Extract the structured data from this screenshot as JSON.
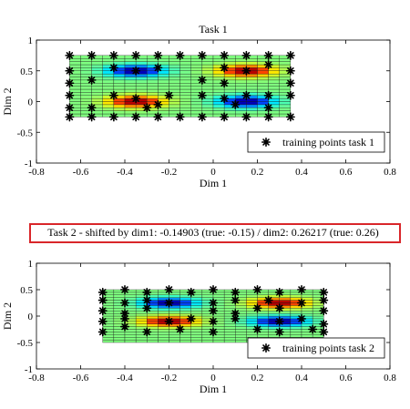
{
  "chart_data": [
    {
      "type": "heatmap",
      "title": "Task 1",
      "xlabel": "Dim 1",
      "ylabel": "Dim 2",
      "xlim": [
        -0.8,
        0.8
      ],
      "ylim": [
        -1,
        1
      ],
      "xticks": [
        "-0.8",
        "-0.6",
        "-0.4",
        "-0.2",
        "0",
        "0.2",
        "0.4",
        "0.6",
        "0.8"
      ],
      "yticks": [
        "-1",
        "-0.5",
        "0",
        "0.5",
        "1"
      ],
      "legend": {
        "label": "training points task 1",
        "position": "lower-right"
      },
      "surface": {
        "x_range": [
          -0.65,
          0.35
        ],
        "y_range": [
          -0.25,
          0.75
        ],
        "cols": 20,
        "rows": 20,
        "blobs": [
          {
            "center": [
              -0.35,
              0.5
            ],
            "sign": -1
          },
          {
            "center": [
              0.15,
              0.5
            ],
            "sign": 1
          },
          {
            "center": [
              -0.35,
              0.0
            ],
            "sign": 1
          },
          {
            "center": [
              0.15,
              0.0
            ],
            "sign": -1
          }
        ]
      },
      "training_points": [
        [
          -0.65,
          0.75
        ],
        [
          -0.55,
          0.75
        ],
        [
          -0.45,
          0.75
        ],
        [
          -0.35,
          0.75
        ],
        [
          -0.25,
          0.75
        ],
        [
          -0.15,
          0.75
        ],
        [
          -0.05,
          0.75
        ],
        [
          0.05,
          0.75
        ],
        [
          0.15,
          0.75
        ],
        [
          0.25,
          0.75
        ],
        [
          0.35,
          0.75
        ],
        [
          -0.65,
          0.5
        ],
        [
          -0.45,
          0.55
        ],
        [
          -0.35,
          0.5
        ],
        [
          -0.25,
          0.55
        ],
        [
          0.05,
          0.55
        ],
        [
          0.15,
          0.5
        ],
        [
          0.25,
          0.6
        ],
        [
          0.35,
          0.5
        ],
        [
          -0.65,
          0.3
        ],
        [
          -0.55,
          0.35
        ],
        [
          -0.05,
          0.35
        ],
        [
          0.05,
          0.3
        ],
        [
          0.35,
          0.3
        ],
        [
          -0.65,
          0.1
        ],
        [
          -0.45,
          0.1
        ],
        [
          -0.35,
          0.05
        ],
        [
          -0.2,
          0.1
        ],
        [
          -0.05,
          0.1
        ],
        [
          0.05,
          0.05
        ],
        [
          0.15,
          0.1
        ],
        [
          0.25,
          0.1
        ],
        [
          0.35,
          0.1
        ],
        [
          -0.65,
          -0.1
        ],
        [
          -0.55,
          -0.1
        ],
        [
          -0.3,
          -0.1
        ],
        [
          -0.25,
          -0.05
        ],
        [
          0.1,
          -0.05
        ],
        [
          0.25,
          -0.1
        ],
        [
          -0.65,
          -0.25
        ],
        [
          -0.55,
          -0.25
        ],
        [
          -0.45,
          -0.25
        ],
        [
          -0.35,
          -0.25
        ],
        [
          -0.25,
          -0.25
        ],
        [
          -0.15,
          -0.25
        ],
        [
          -0.05,
          -0.25
        ],
        [
          0.05,
          -0.25
        ],
        [
          0.15,
          -0.25
        ],
        [
          0.25,
          -0.25
        ],
        [
          0.35,
          -0.25
        ]
      ]
    },
    {
      "type": "heatmap",
      "title": "Task 2 - shifted by dim1: -0.14903 (true: -0.15) / dim2: 0.26217 (true: 0.26)",
      "title_box_color": "#d9262a",
      "xlabel": "Dim 1",
      "ylabel": "Dim 2",
      "xlim": [
        -0.8,
        0.8
      ],
      "ylim": [
        -1,
        1
      ],
      "xticks": [
        "-0.8",
        "-0.6",
        "-0.4",
        "-0.2",
        "0",
        "0.2",
        "0.4",
        "0.6",
        "0.8"
      ],
      "yticks": [
        "-1",
        "-0.5",
        "0",
        "0.5",
        "1"
      ],
      "legend": {
        "label": "training points task 2",
        "position": "lower-right"
      },
      "surface": {
        "x_range": [
          -0.5,
          0.5
        ],
        "y_range": [
          -0.5,
          0.5
        ],
        "cols": 20,
        "rows": 20,
        "blobs": [
          {
            "center": [
              -0.2,
              0.25
            ],
            "sign": -1
          },
          {
            "center": [
              0.3,
              0.25
            ],
            "sign": 1
          },
          {
            "center": [
              -0.2,
              -0.1
            ],
            "sign": 1
          },
          {
            "center": [
              0.3,
              -0.1
            ],
            "sign": -1
          }
        ]
      },
      "training_points": [
        [
          -0.5,
          0.45
        ],
        [
          -0.4,
          0.5
        ],
        [
          -0.3,
          0.45
        ],
        [
          -0.2,
          0.5
        ],
        [
          -0.1,
          0.45
        ],
        [
          0.0,
          0.5
        ],
        [
          0.1,
          0.45
        ],
        [
          0.2,
          0.5
        ],
        [
          0.3,
          0.45
        ],
        [
          0.4,
          0.5
        ],
        [
          0.5,
          0.45
        ],
        [
          -0.5,
          0.3
        ],
        [
          -0.4,
          0.25
        ],
        [
          -0.3,
          0.3
        ],
        [
          -0.2,
          0.25
        ],
        [
          0.0,
          0.25
        ],
        [
          0.1,
          0.3
        ],
        [
          0.25,
          0.3
        ],
        [
          0.3,
          0.15
        ],
        [
          0.4,
          0.25
        ],
        [
          0.5,
          0.3
        ],
        [
          -0.5,
          0.1
        ],
        [
          -0.4,
          0.05
        ],
        [
          -0.3,
          0.15
        ],
        [
          0.0,
          0.1
        ],
        [
          0.1,
          0.05
        ],
        [
          0.2,
          0.15
        ],
        [
          0.5,
          0.1
        ],
        [
          -0.5,
          -0.1
        ],
        [
          -0.4,
          -0.05
        ],
        [
          -0.2,
          -0.1
        ],
        [
          -0.1,
          -0.05
        ],
        [
          0.0,
          -0.1
        ],
        [
          0.1,
          -0.05
        ],
        [
          0.3,
          -0.1
        ],
        [
          0.4,
          -0.05
        ],
        [
          0.5,
          -0.15
        ],
        [
          -0.5,
          -0.3
        ],
        [
          -0.4,
          -0.2
        ],
        [
          -0.3,
          -0.3
        ],
        [
          -0.15,
          -0.25
        ],
        [
          0.0,
          -0.3
        ],
        [
          0.2,
          -0.25
        ],
        [
          0.3,
          -0.3
        ],
        [
          0.45,
          -0.25
        ],
        [
          0.5,
          -0.3
        ]
      ]
    }
  ]
}
